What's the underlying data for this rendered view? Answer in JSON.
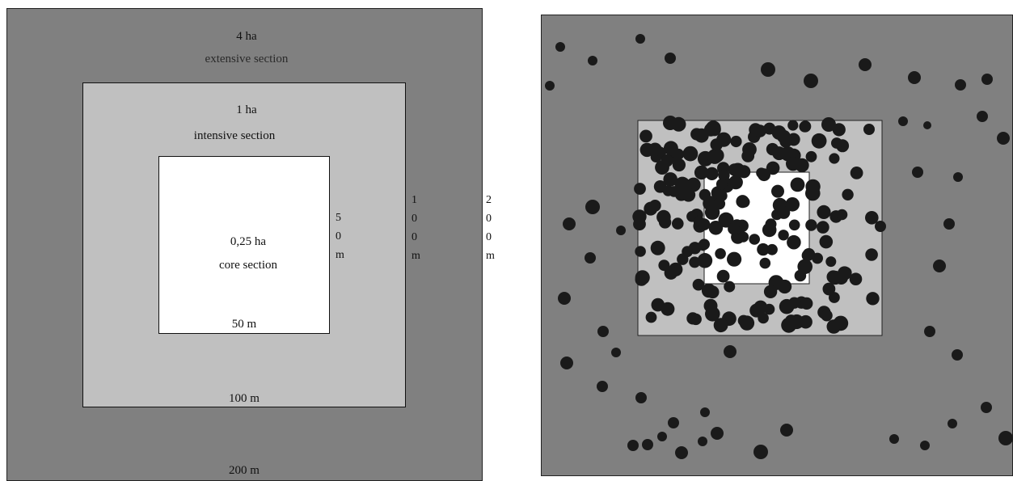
{
  "sections": {
    "extensive": {
      "area": "4 ha",
      "name": "extensive section",
      "side": "200 m",
      "vertical": [
        "2",
        "0",
        "0",
        "m"
      ]
    },
    "intensive": {
      "area": "1 ha",
      "name": "intensive section",
      "side": "100 m",
      "vertical": [
        "1",
        "0",
        "0",
        "m"
      ]
    },
    "core": {
      "area": "0,25 ha",
      "name": "core section",
      "side": "50 m",
      "vertical": [
        "5",
        "0",
        "m"
      ]
    }
  },
  "colors": {
    "extensive_fill": "#808080",
    "intensive_fill": "#c0c0c0",
    "core_fill": "#ffffff",
    "tree": "#1a1a1a"
  }
}
